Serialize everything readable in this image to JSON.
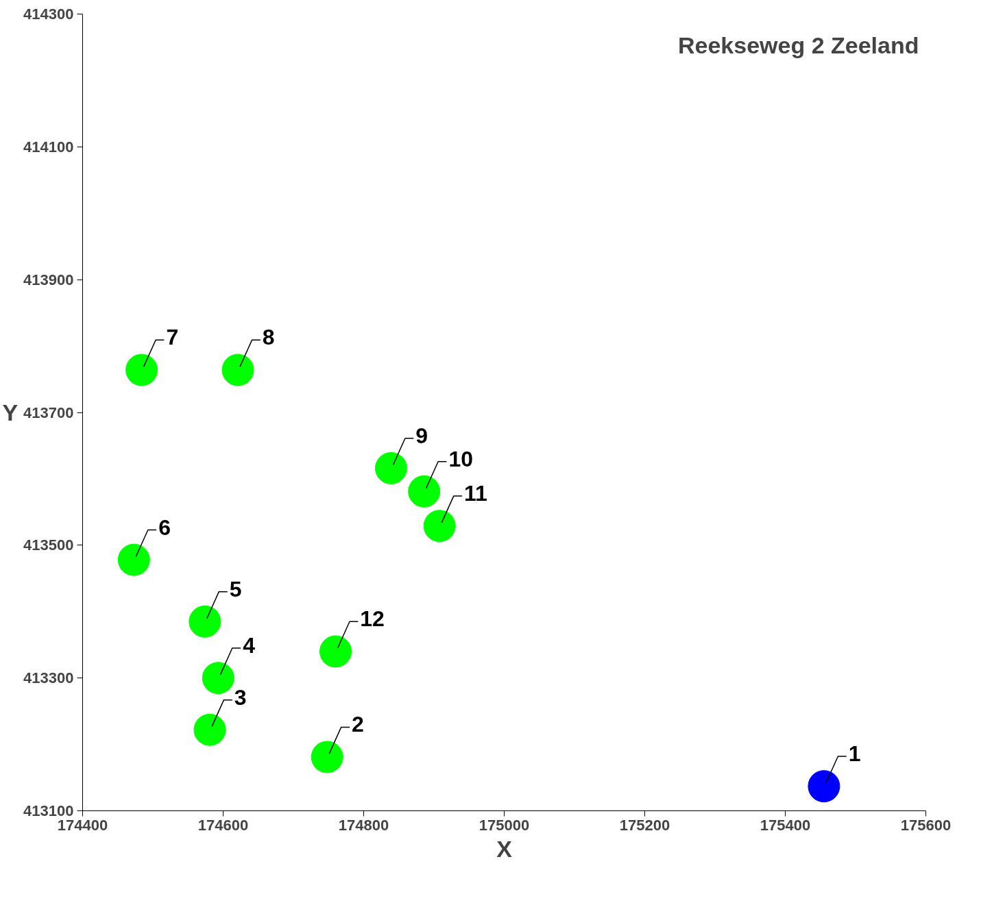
{
  "chart_data": {
    "type": "scatter",
    "title": "Reekseweg 2 Zeeland",
    "xlabel": "X",
    "ylabel": "Y",
    "x": [
      175455,
      174748,
      174581,
      174593,
      174574,
      174473,
      174484,
      174621,
      174839,
      174886,
      174908,
      174760
    ],
    "values": [
      413137,
      413181,
      413222,
      413300,
      413385,
      413478,
      413764,
      413764,
      413616,
      413581,
      413529,
      413340
    ],
    "colors": [
      "#0000ff",
      "#00ff00",
      "#00ff00",
      "#00ff00",
      "#00ff00",
      "#00ff00",
      "#00ff00",
      "#00ff00",
      "#00ff00",
      "#00ff00",
      "#00ff00",
      "#00ff00"
    ],
    "marker": "circle",
    "grid": false,
    "xlim": [
      174400,
      175600
    ],
    "xticks": [
      174400,
      174600,
      174800,
      175000,
      175200,
      175400,
      175600
    ],
    "ylim": [
      413100,
      414300
    ],
    "yticks": [
      413100,
      413300,
      413500,
      413700,
      413900,
      414100,
      414300
    ],
    "annotations": [
      {
        "text": "1",
        "x": 175455,
        "y": 413137
      },
      {
        "text": "2",
        "x": 174748,
        "y": 413181
      },
      {
        "text": "3",
        "x": 174581,
        "y": 413222
      },
      {
        "text": "4",
        "x": 174593,
        "y": 413300
      },
      {
        "text": "5",
        "x": 174574,
        "y": 413385
      },
      {
        "text": "6",
        "x": 174473,
        "y": 413478
      },
      {
        "text": "7",
        "x": 174484,
        "y": 413764
      },
      {
        "text": "8",
        "x": 174621,
        "y": 413764
      },
      {
        "text": "9",
        "x": 174839,
        "y": 413616
      },
      {
        "text": "10",
        "x": 174886,
        "y": 413581
      },
      {
        "text": "11",
        "x": 174908,
        "y": 413529
      },
      {
        "text": "12",
        "x": 174760,
        "y": 413340
      }
    ]
  }
}
